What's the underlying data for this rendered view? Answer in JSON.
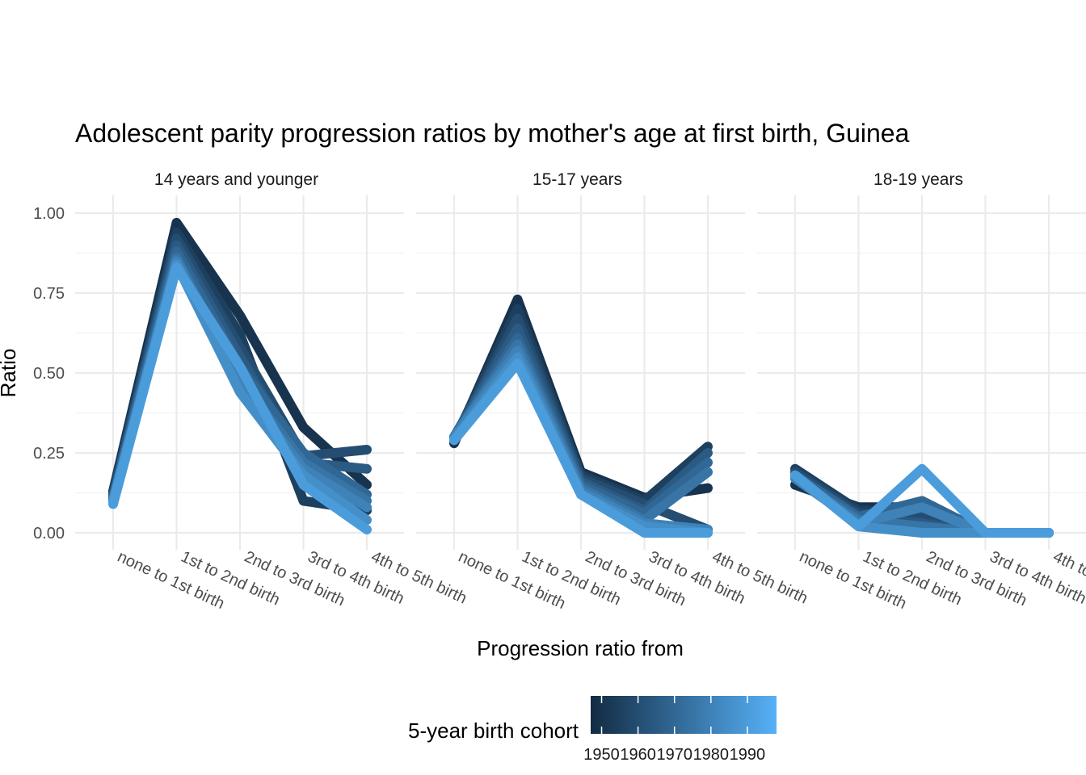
{
  "chart_data": {
    "type": "line",
    "title": "Adolescent parity progression ratios by mother's age at first birth,  Guinea",
    "xlabel": "Progression ratio from",
    "ylabel": "Ratio",
    "ylim": [
      0,
      1.05
    ],
    "yticks": [
      "0.00",
      "0.25",
      "0.50",
      "0.75",
      "1.00"
    ],
    "categories": [
      "none to 1st birth",
      "1st to 2nd birth",
      "2nd to 3rd birth",
      "3rd to 4th birth",
      "4th to 5th birth"
    ],
    "legend": {
      "title": "5-year birth cohort",
      "position": "bottom",
      "min": 1947,
      "max": 1998,
      "low_color": "#132B43",
      "high_color": "#56B1F7",
      "labels": [
        "1950",
        "1960",
        "1970",
        "1980",
        "1990"
      ]
    },
    "panels": [
      {
        "label": "14 years and younger",
        "series": [
          {
            "cohort": 1950,
            "values": [
              0.13,
              0.97,
              0.68,
              0.33,
              0.15
            ]
          },
          {
            "cohort": 1955,
            "values": [
              0.12,
              0.94,
              0.62,
              0.1,
              0.07
            ]
          },
          {
            "cohort": 1960,
            "values": [
              0.12,
              0.92,
              0.58,
              0.24,
              0.26
            ]
          },
          {
            "cohort": 1965,
            "values": [
              0.11,
              0.9,
              0.55,
              0.22,
              0.2
            ]
          },
          {
            "cohort": 1970,
            "values": [
              0.11,
              0.88,
              0.52,
              0.25,
              0.12
            ]
          },
          {
            "cohort": 1975,
            "values": [
              0.1,
              0.86,
              0.48,
              0.22,
              0.1
            ]
          },
          {
            "cohort": 1980,
            "values": [
              0.1,
              0.85,
              0.46,
              0.2,
              0.08
            ]
          },
          {
            "cohort": 1985,
            "values": [
              0.1,
              0.84,
              0.44,
              0.18,
              0.04
            ]
          },
          {
            "cohort": 1990,
            "values": [
              0.09,
              0.83,
              0.52,
              0.15,
              0.01
            ]
          }
        ]
      },
      {
        "label": "15-17 years",
        "series": [
          {
            "cohort": 1950,
            "values": [
              0.28,
              0.73,
              0.19,
              0.11,
              0.14
            ]
          },
          {
            "cohort": 1955,
            "values": [
              0.29,
              0.7,
              0.18,
              0.1,
              0.27
            ]
          },
          {
            "cohort": 1960,
            "values": [
              0.29,
              0.67,
              0.17,
              0.09,
              0.01
            ]
          },
          {
            "cohort": 1965,
            "values": [
              0.3,
              0.64,
              0.16,
              0.07,
              0.25
            ]
          },
          {
            "cohort": 1970,
            "values": [
              0.3,
              0.61,
              0.15,
              0.06,
              0.22
            ]
          },
          {
            "cohort": 1975,
            "values": [
              0.3,
              0.59,
              0.14,
              0.04,
              0.19
            ]
          },
          {
            "cohort": 1980,
            "values": [
              0.3,
              0.57,
              0.13,
              0.03,
              0.01
            ]
          },
          {
            "cohort": 1985,
            "values": [
              0.29,
              0.55,
              0.12,
              0.02,
              0.0
            ]
          },
          {
            "cohort": 1990,
            "values": [
              0.29,
              0.53,
              0.12,
              0.0,
              0.0
            ]
          }
        ]
      },
      {
        "label": "18-19 years",
        "series": [
          {
            "cohort": 1950,
            "values": [
              0.15,
              0.08,
              0.08,
              0.0,
              0.0
            ]
          },
          {
            "cohort": 1955,
            "values": [
              0.2,
              0.07,
              0.06,
              0.0,
              0.0
            ]
          },
          {
            "cohort": 1960,
            "values": [
              0.19,
              0.06,
              0.05,
              0.0,
              0.0
            ]
          },
          {
            "cohort": 1965,
            "values": [
              0.18,
              0.05,
              0.03,
              0.0,
              0.0
            ]
          },
          {
            "cohort": 1970,
            "values": [
              0.18,
              0.05,
              0.1,
              0.0,
              0.0
            ]
          },
          {
            "cohort": 1975,
            "values": [
              0.17,
              0.04,
              0.02,
              0.0,
              0.0
            ]
          },
          {
            "cohort": 1980,
            "values": [
              0.17,
              0.03,
              0.08,
              0.0,
              0.0
            ]
          },
          {
            "cohort": 1985,
            "values": [
              0.18,
              0.02,
              0.0,
              0.0,
              0.0
            ]
          },
          {
            "cohort": 1990,
            "values": [
              0.18,
              0.02,
              0.2,
              0.0,
              0.0
            ]
          }
        ]
      }
    ]
  }
}
